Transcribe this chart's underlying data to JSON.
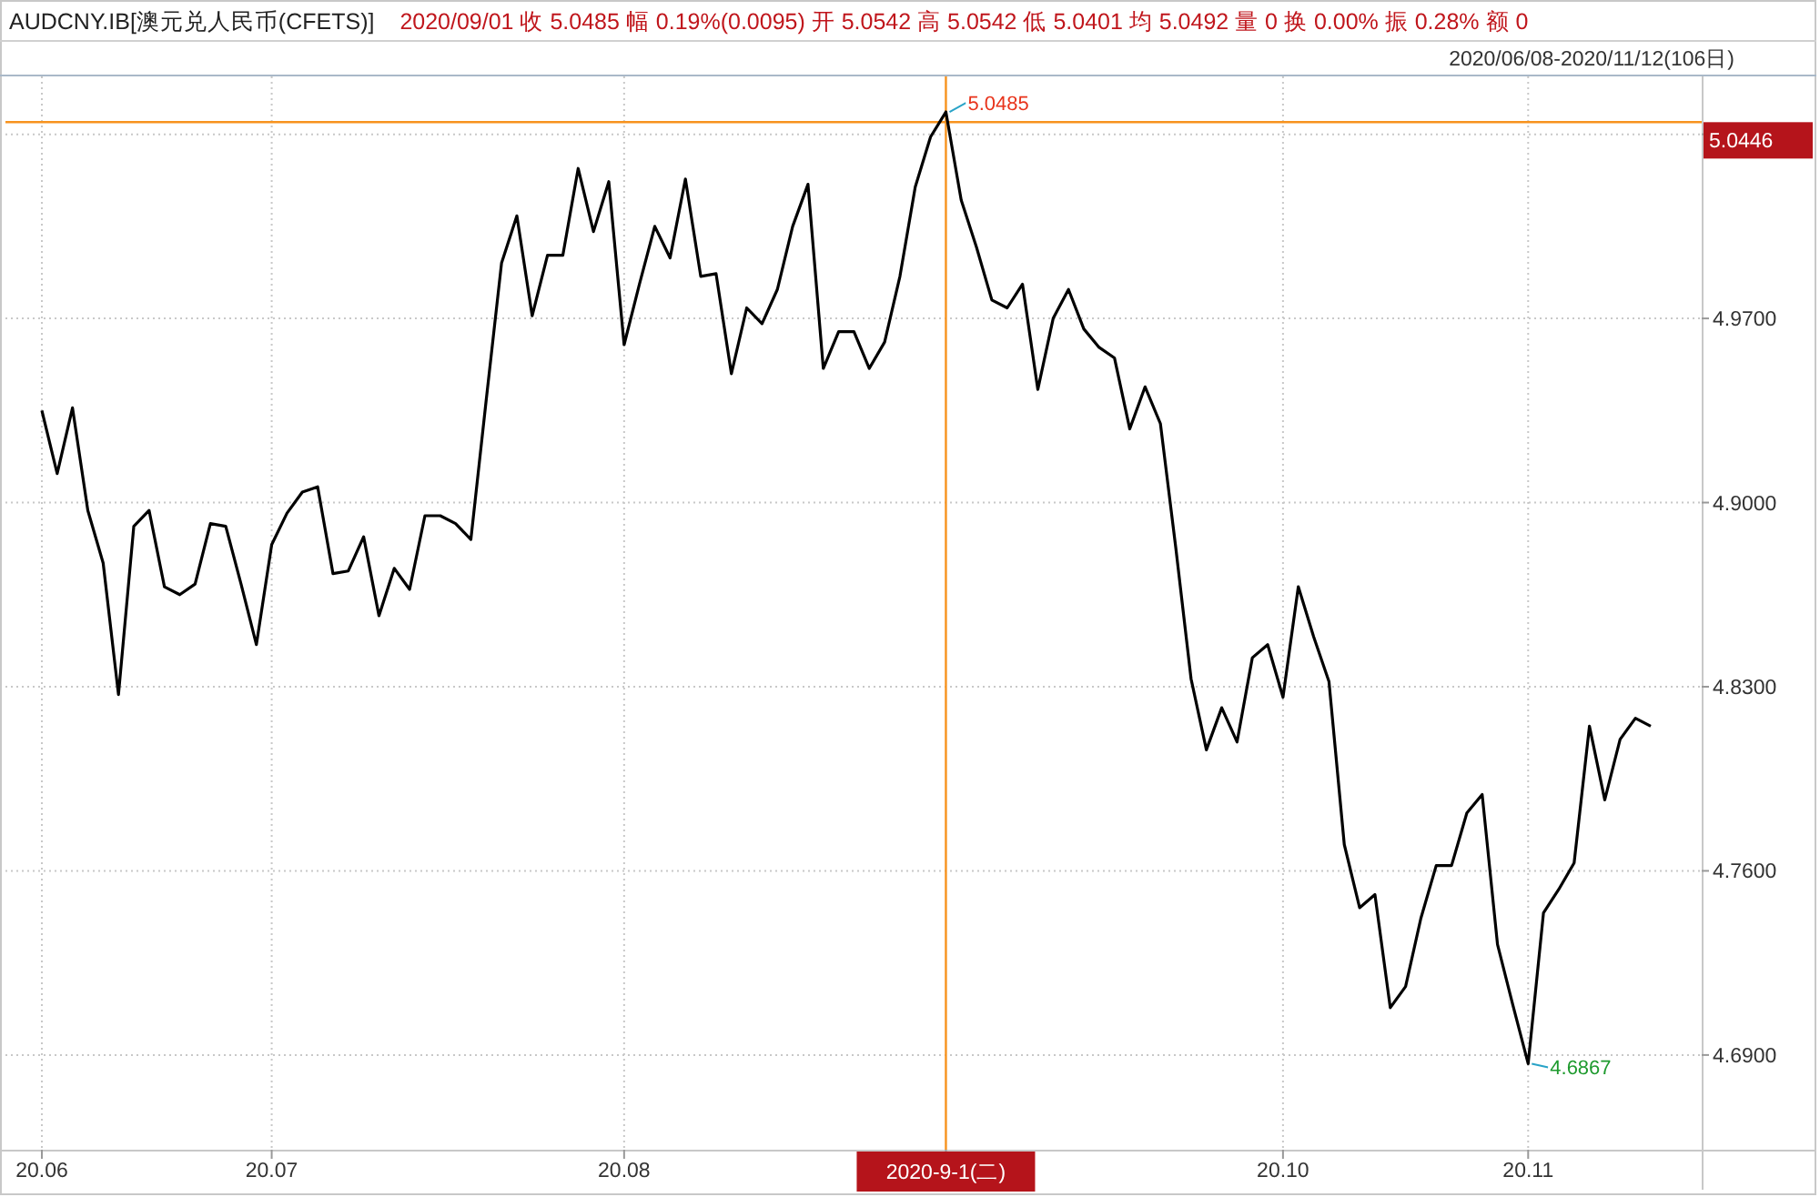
{
  "chart_data": {
    "type": "line",
    "title": "AUDCNY.IB[澳元兑人民币(CFETS)]",
    "subtitle": "2020/09/01 收 5.0485 幅 0.19%(0.0095) 开 5.0542 高 5.0542 低 5.0401 均 5.0492 量 0 换 0.00% 振 0.28% 额 0",
    "annotations": [
      "2020/06/08-2020/11/12(106日)",
      {
        "text": "5.0485",
        "x": "2020-9-1(二)",
        "y": 5.0485
      },
      {
        "text": "4.6867",
        "x": "20.11",
        "y": 4.6867
      }
    ],
    "categories": [
      "20.06",
      null,
      null,
      null,
      null,
      null,
      null,
      null,
      null,
      null,
      null,
      null,
      null,
      null,
      null,
      "20.07",
      null,
      null,
      null,
      null,
      null,
      null,
      null,
      null,
      null,
      null,
      null,
      null,
      null,
      null,
      null,
      null,
      null,
      null,
      null,
      null,
      null,
      null,
      "20.08",
      null,
      null,
      null,
      null,
      null,
      null,
      null,
      null,
      null,
      null,
      null,
      null,
      null,
      null,
      null,
      null,
      null,
      null,
      null,
      null,
      "2020-9-1(二)",
      null,
      null,
      null,
      null,
      null,
      null,
      null,
      null,
      null,
      null,
      null,
      null,
      null,
      null,
      null,
      null,
      null,
      null,
      null,
      null,
      null,
      "20.10",
      null,
      null,
      null,
      null,
      null,
      null,
      null,
      null,
      null,
      null,
      null,
      null,
      null,
      null,
      null,
      "20.11",
      null,
      null,
      null,
      null,
      null,
      null,
      null,
      null
    ],
    "series": [
      {
        "color": "#000000",
        "values": [
          4.935,
          4.911,
          4.936,
          4.897,
          4.877,
          4.827,
          4.891,
          4.897,
          4.868,
          4.865,
          4.869,
          4.892,
          4.891,
          4.869,
          4.846,
          4.884,
          4.896,
          4.904,
          4.906,
          4.873,
          4.874,
          4.887,
          4.857,
          4.875,
          4.867,
          4.895,
          4.895,
          4.892,
          4.886,
          4.939,
          4.991,
          5.009,
          4.971,
          4.994,
          4.994,
          5.027,
          5.003,
          5.022,
          4.96,
          4.983,
          5.005,
          4.993,
          5.023,
          4.986,
          4.987,
          4.949,
          4.974,
          4.968,
          4.981,
          5.005,
          5.021,
          4.951,
          4.965,
          4.965,
          4.951,
          4.961,
          4.986,
          5.02,
          5.039,
          5.0485,
          5.015,
          4.997,
          4.977,
          4.974,
          4.983,
          4.943,
          4.97,
          4.981,
          4.966,
          4.959,
          4.955,
          4.928,
          4.944,
          4.93,
          4.883,
          4.833,
          4.806,
          4.822,
          4.809,
          4.841,
          4.846,
          4.826,
          4.868,
          4.849,
          4.832,
          4.77,
          4.746,
          4.751,
          4.708,
          4.716,
          4.742,
          4.762,
          4.762,
          4.782,
          4.789,
          4.732,
          4.709,
          4.6867,
          4.744,
          4.753,
          4.763,
          4.815,
          4.787,
          4.81,
          4.818,
          4.815
        ]
      }
    ],
    "ylim": [
      4.654,
      5.062
    ],
    "yticks": [
      {
        "value": 4.69,
        "label": "4.6900"
      },
      {
        "value": 4.76,
        "label": "4.7600"
      },
      {
        "value": 4.83,
        "label": "4.8300"
      },
      {
        "value": 4.9,
        "label": "4.9000"
      },
      {
        "value": 4.97,
        "label": "4.9700"
      },
      {
        "value": 5.04,
        "label": null
      }
    ],
    "ref_lines": [
      {
        "axis": "y",
        "value": 5.0446,
        "label": "5.0446",
        "color": "#f7931e"
      },
      {
        "axis": "x",
        "value": "2020-9-1(二)",
        "label": null,
        "color": "#f7931e"
      }
    ],
    "grid": true,
    "line_style": "solid"
  }
}
